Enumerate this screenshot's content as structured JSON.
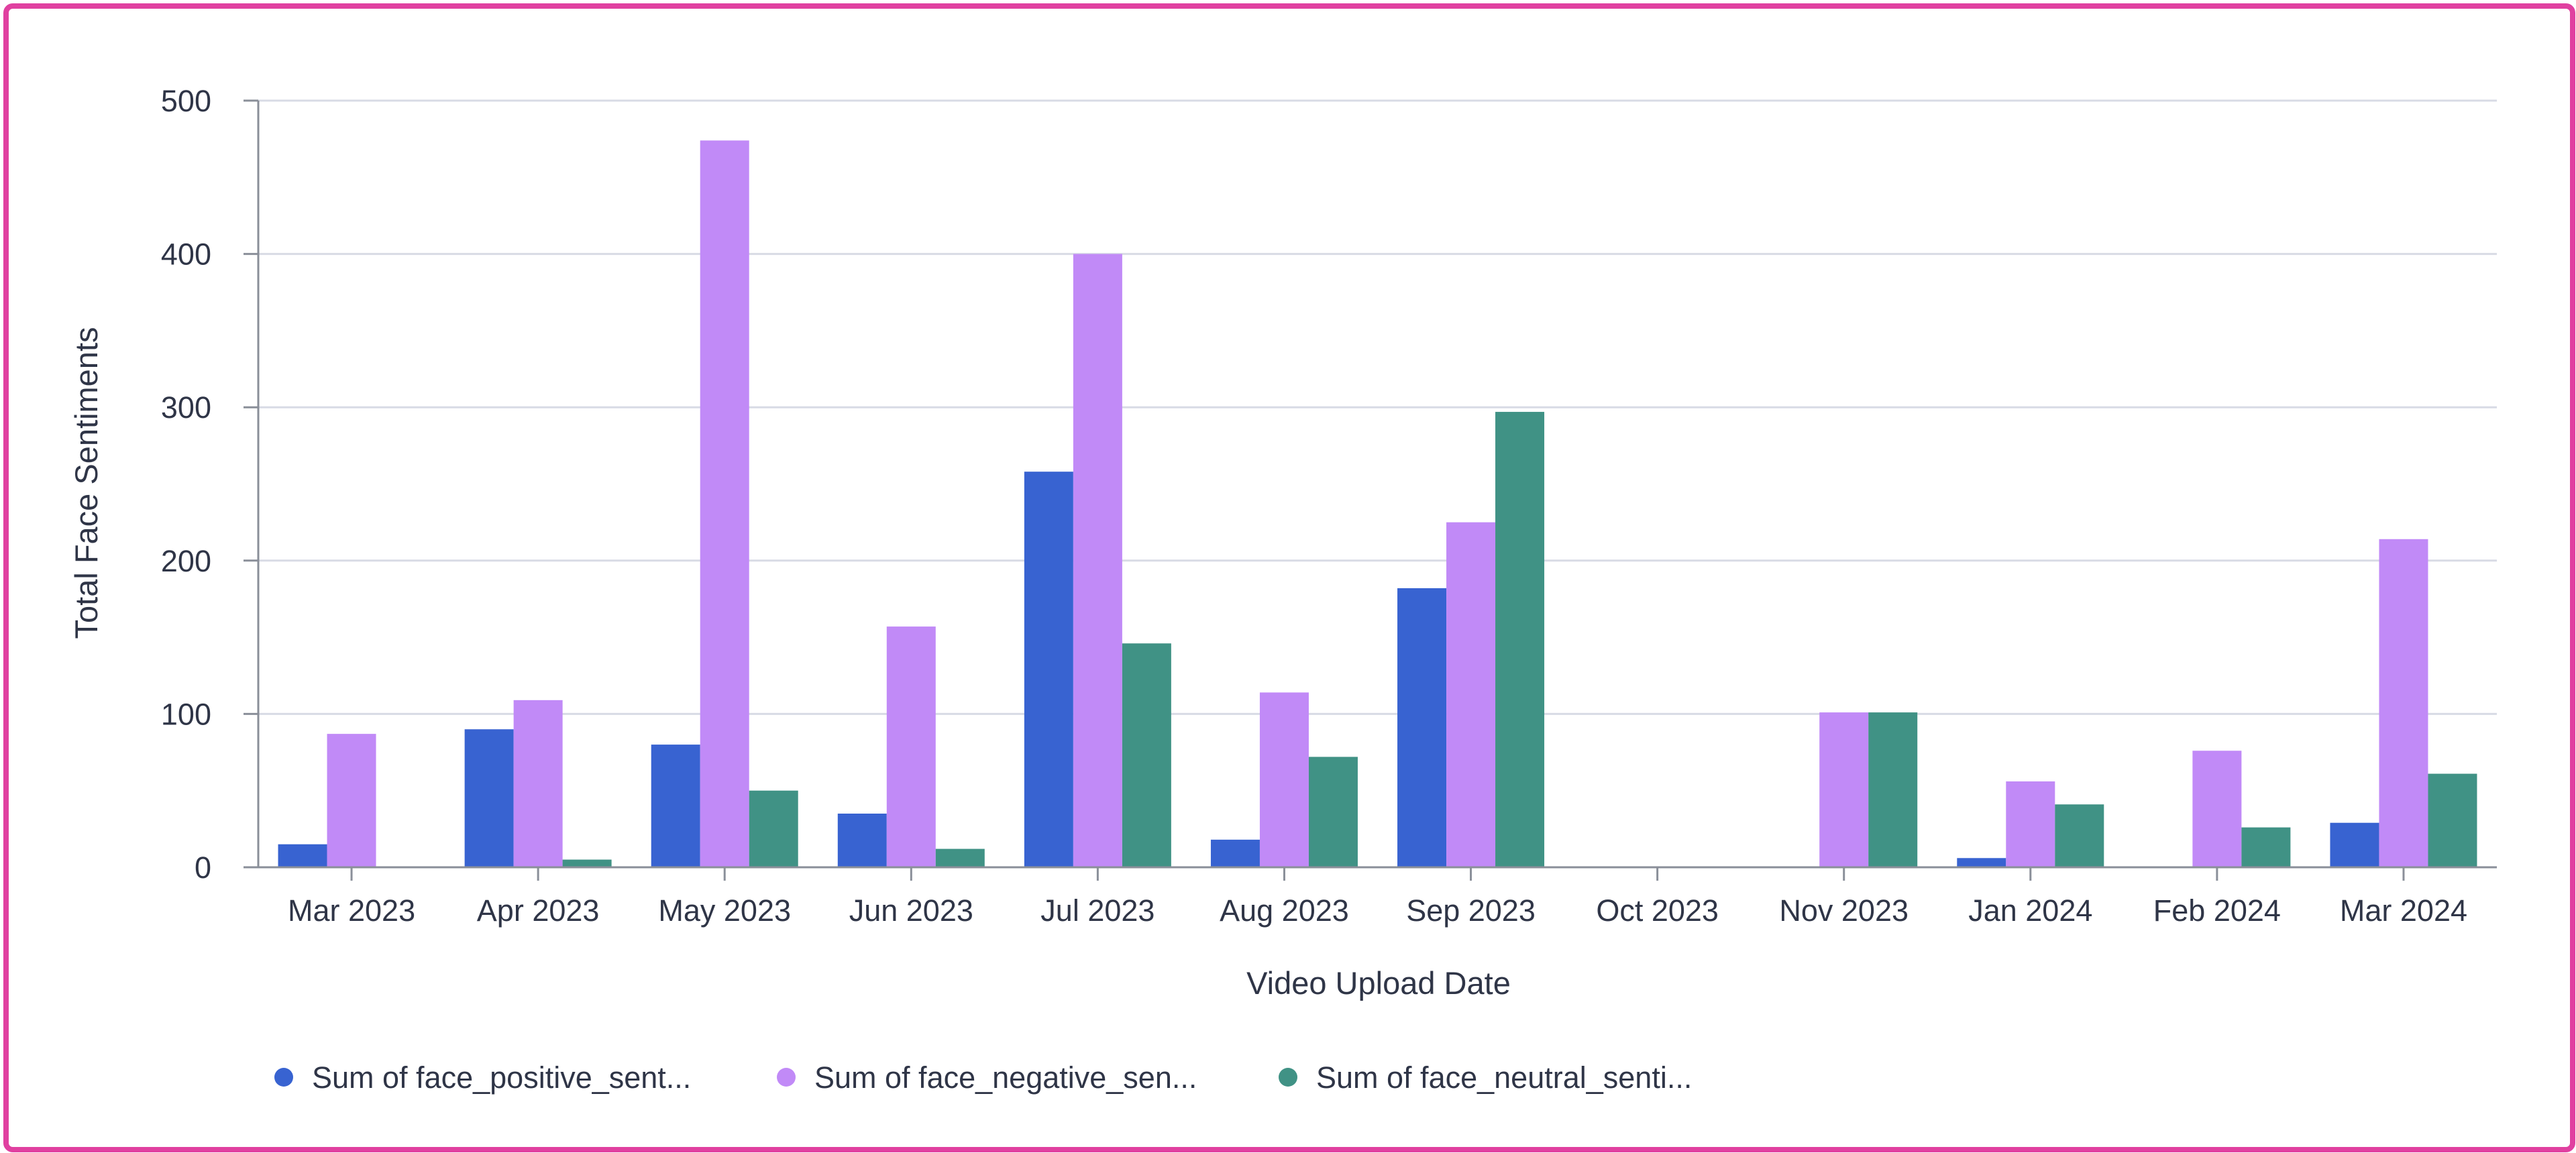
{
  "chart_data": {
    "type": "bar",
    "xlabel": "Video Upload Date",
    "ylabel": "Total Face Sentiments",
    "ylim": [
      0,
      500
    ],
    "yticks": [
      0,
      100,
      200,
      300,
      400,
      500
    ],
    "grid": true,
    "legend_position": "bottom-left",
    "categories": [
      "Mar 2023",
      "Apr 2023",
      "May 2023",
      "Jun 2023",
      "Jul 2023",
      "Aug 2023",
      "Sep 2023",
      "Oct 2023",
      "Nov 2023",
      "Jan 2024",
      "Feb 2024",
      "Mar 2024"
    ],
    "series": [
      {
        "name": "Sum of face_positive_sent...",
        "color": "#3863d1",
        "values": [
          15,
          90,
          80,
          35,
          258,
          18,
          182,
          0,
          0,
          6,
          0,
          29
        ]
      },
      {
        "name": "Sum of face_negative_sen...",
        "color": "#c18af7",
        "values": [
          87,
          109,
          474,
          157,
          400,
          114,
          225,
          0,
          101,
          56,
          76,
          214
        ]
      },
      {
        "name": "Sum of face_neutral_senti...",
        "color": "#409285",
        "values": [
          0,
          5,
          50,
          12,
          146,
          72,
          297,
          0,
          101,
          41,
          26,
          61
        ]
      }
    ]
  },
  "colors": {
    "border": "#e040a0",
    "grid": "#d8dbe5",
    "axis": "#8a8f99",
    "text": "#2f3547"
  }
}
